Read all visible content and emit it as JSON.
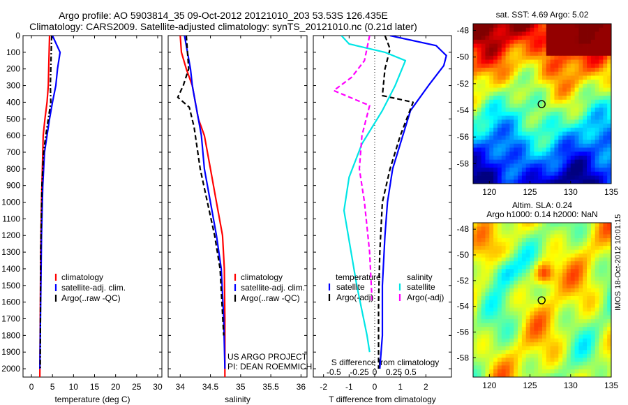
{
  "title": {
    "line1": "Argo profile: AO 5903814_35 09-Oct-2012 20121010_203 53.53S 126.435E",
    "line2": "Climatology: CARS2009. Satellite-adjusted climatology: synTS_20121010.nc (0.21d later)"
  },
  "watermark": "IMOS 18-Oct-2012 10:01:15",
  "chart_data": [
    {
      "type": "line",
      "id": "temperature",
      "xlabel": "temperature (deg C)",
      "xlim": [
        -2,
        31
      ],
      "xticks": [
        0,
        5,
        10,
        15,
        20,
        25,
        30
      ],
      "xtick_labels": [
        "0",
        "5",
        "10",
        "15",
        "20",
        "25",
        "30"
      ],
      "ylim": [
        0,
        2050
      ],
      "yticks": [
        0,
        100,
        200,
        300,
        400,
        500,
        600,
        700,
        800,
        900,
        1000,
        1100,
        1200,
        1300,
        1400,
        1500,
        1600,
        1700,
        1800,
        1900,
        2000
      ],
      "y_reversed": true,
      "legend": {
        "placement": "lower-center",
        "entries": [
          {
            "text": "climatology",
            "color": "#ff0000"
          },
          {
            "text": "satellite-adj. clim.",
            "color": "#0000ff"
          },
          {
            "text": "Argo(..raw -QC)",
            "color": "#000000"
          }
        ]
      },
      "series": [
        {
          "name": "climatology",
          "color": "#ff0000",
          "style": "solid",
          "x": [
            4.3,
            4.2,
            4.1,
            4.0,
            3.7,
            3.2,
            2.8,
            2.6,
            2.4,
            2.2,
            2.1,
            2.0
          ],
          "y": [
            0,
            100,
            200,
            300,
            400,
            500,
            600,
            800,
            1000,
            1300,
            1700,
            2050
          ]
        },
        {
          "name": "satellite-adj. clim.",
          "color": "#0000ff",
          "style": "solid",
          "x": [
            5.0,
            6.8,
            6.2,
            5.8,
            5.0,
            4.3,
            3.7,
            3.1,
            2.7,
            2.4,
            2.2,
            2.0
          ],
          "y": [
            0,
            100,
            200,
            300,
            400,
            500,
            600,
            700,
            900,
            1200,
            1600,
            2000
          ]
        },
        {
          "name": "Argo(..raw -QC)",
          "color": "#000000",
          "style": "dashdot",
          "x": [
            4.8,
            4.7,
            4.6,
            4.5,
            4.6,
            4.0,
            3.4,
            2.9,
            2.5,
            2.2,
            2.1
          ],
          "y": [
            0,
            100,
            200,
            300,
            400,
            500,
            600,
            700,
            900,
            1300,
            2000
          ]
        }
      ]
    },
    {
      "type": "line",
      "id": "salinity",
      "xlabel": "salinity",
      "xlim": [
        33.8,
        36.1
      ],
      "xticks": [
        34,
        34.5,
        35,
        35.5,
        36
      ],
      "xtick_labels": [
        "34",
        "34.5",
        "35",
        "35.5",
        "36"
      ],
      "ylim": [
        0,
        2050
      ],
      "y_reversed": true,
      "legend": {
        "placement": "lower-right",
        "entries": [
          {
            "text": "climatology",
            "color": "#ff0000"
          },
          {
            "text": "satellite-adj. clim.",
            "color": "#0000ff"
          },
          {
            "text": "Argo(..raw -QC)",
            "color": "#000000"
          }
        ]
      },
      "annotations": [
        "US ARGO PROJECT",
        "PI: DEAN ROEMMICH"
      ],
      "series": [
        {
          "name": "climatology",
          "color": "#ff0000",
          "style": "solid",
          "x": [
            34.0,
            34.02,
            34.1,
            34.2,
            34.25,
            34.3,
            34.4,
            34.5,
            34.6,
            34.7,
            34.73,
            34.74,
            34.74
          ],
          "y": [
            0,
            100,
            200,
            300,
            400,
            500,
            600,
            800,
            1000,
            1200,
            1400,
            1700,
            2050
          ]
        },
        {
          "name": "satellite-adj. clim.",
          "color": "#0000ff",
          "style": "solid",
          "x": [
            34.07,
            34.12,
            34.17,
            34.2,
            34.25,
            34.3,
            34.35,
            34.4,
            34.5,
            34.6,
            34.68,
            34.72,
            34.74
          ],
          "y": [
            0,
            100,
            200,
            300,
            400,
            500,
            600,
            800,
            1000,
            1200,
            1400,
            1700,
            2000
          ]
        },
        {
          "name": "Argo(..raw -QC)",
          "color": "#000000",
          "style": "dashed",
          "x": [
            34.1,
            34.12,
            34.14,
            34.05,
            33.96,
            34.15,
            34.23,
            34.33,
            34.45,
            34.57,
            34.66,
            34.72
          ],
          "y": [
            0,
            100,
            200,
            300,
            370,
            430,
            550,
            800,
            1000,
            1200,
            1400,
            1800
          ]
        }
      ]
    },
    {
      "type": "line",
      "id": "difference",
      "xlabel": "T difference from climatology",
      "xlabel_top": "S difference from climatology",
      "xlim": [
        -2.4,
        3.0
      ],
      "xticks": [
        -2,
        -1,
        0,
        1,
        2
      ],
      "xtick_labels": [
        "-2",
        "-1",
        "0",
        "1",
        "2"
      ],
      "top_ticks": [
        "-0.5",
        "-0.25",
        "0",
        "0.25",
        "0.5"
      ],
      "ylim": [
        0,
        2050
      ],
      "y_reversed": true,
      "legend": {
        "placement": "lower-center",
        "headers": [
          "temperature",
          "salinity"
        ],
        "entries": [
          {
            "text": "satellite",
            "color": "#0000ff"
          },
          {
            "text": "Argo(-adj)",
            "color": "#000000"
          },
          {
            "text": "satellite",
            "color": "#00e5e5"
          },
          {
            "text": "Argo(-adj)",
            "color": "#ff00ff"
          }
        ]
      },
      "series": [
        {
          "name": "temperature satellite",
          "color": "#0000ff",
          "style": "solid",
          "x": [
            0.6,
            2.4,
            2.8,
            2.7,
            2.1,
            1.4,
            1.1,
            0.9,
            0.7,
            0.5,
            0.4,
            0.3,
            0.3,
            0.2
          ],
          "y": [
            0,
            60,
            120,
            180,
            300,
            450,
            600,
            700,
            800,
            1000,
            1200,
            1500,
            1800,
            2000
          ]
        },
        {
          "name": "temperature Argo(-adj)",
          "color": "#000000",
          "style": "dashed",
          "x": [
            0.4,
            0.6,
            0.4,
            0.3,
            1.5,
            1.0,
            0.6,
            0.3,
            0.2,
            0.15,
            0.15
          ],
          "y": [
            0,
            80,
            200,
            360,
            400,
            600,
            800,
            1000,
            1300,
            1600,
            2000
          ]
        },
        {
          "name": "salinity satellite",
          "color": "#00e5e5",
          "style": "solid",
          "x": [
            -1.3,
            -1.0,
            0.4,
            1.2,
            0.8,
            0.3,
            -0.5,
            -1.0,
            -1.2,
            -0.7,
            -0.3,
            -0.2
          ],
          "y": [
            0,
            50,
            100,
            150,
            300,
            450,
            650,
            850,
            1050,
            1500,
            1800,
            1900
          ]
        },
        {
          "name": "salinity Argo(-adj)",
          "color": "#ff00ff",
          "style": "dashed",
          "x": [
            -0.2,
            -0.4,
            -0.9,
            -1.6,
            -0.2,
            -0.5,
            -0.6,
            -0.4,
            -0.2,
            -0.1
          ],
          "y": [
            0,
            150,
            250,
            330,
            420,
            600,
            800,
            1000,
            1300,
            1600
          ]
        }
      ]
    },
    {
      "type": "heatmap",
      "id": "sst-map",
      "title": "sat. SST: 4.69 Argo: 5.02",
      "xlim": [
        118,
        135
      ],
      "ylim": [
        -59.5,
        -47.5
      ],
      "xticks": [
        120,
        125,
        130,
        135
      ],
      "xtick_labels": [
        "120",
        "125",
        "130",
        "135"
      ],
      "yticks": [
        -48,
        -50,
        -52,
        -54,
        -56,
        -58
      ],
      "ytick_labels": [
        "-48",
        "-50",
        "-52",
        "-54",
        "-56",
        "-58"
      ],
      "colormap": "jet",
      "profile_marker": {
        "lon": 126.435,
        "lat": -53.53
      }
    },
    {
      "type": "heatmap",
      "id": "sla-map",
      "title": [
        "Altim. SLA: 0.24",
        "Argo h1000: 0.14 h2000: NaN"
      ],
      "xlim": [
        118,
        135
      ],
      "ylim": [
        -59.5,
        -47.5
      ],
      "xticks": [
        120,
        125,
        130,
        135
      ],
      "xtick_labels": [
        "120",
        "125",
        "130",
        "135"
      ],
      "yticks": [
        -48,
        -50,
        -52,
        -54,
        -56,
        -58
      ],
      "ytick_labels": [
        "-48",
        "-50",
        "-52",
        "-54",
        "-56",
        "-58"
      ],
      "colormap": "jet",
      "profile_marker": {
        "lon": 126.435,
        "lat": -53.53
      }
    }
  ]
}
